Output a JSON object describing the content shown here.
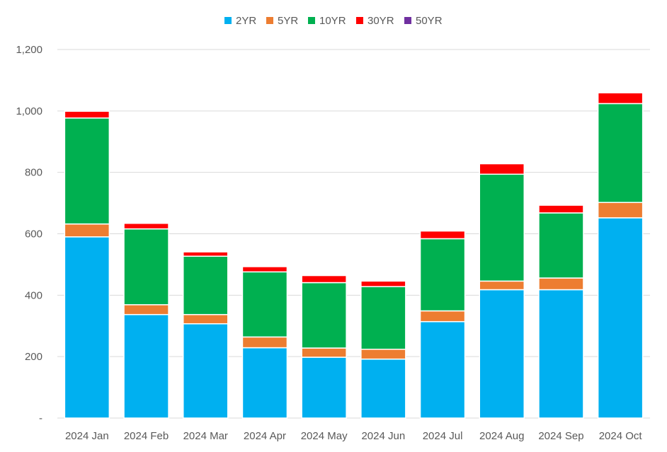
{
  "chart_data": {
    "type": "bar",
    "stacked": true,
    "categories": [
      "2024 Jan",
      "2024 Feb",
      "2024 Mar",
      "2024 Apr",
      "2024 May",
      "2024 Jun",
      "2024 Jul",
      "2024 Aug",
      "2024 Sep",
      "2024 Oct"
    ],
    "series": [
      {
        "name": "2YR",
        "color": "#00B0F0",
        "values": [
          590,
          337,
          307,
          229,
          198,
          192,
          314,
          418,
          418,
          652
        ]
      },
      {
        "name": "5YR",
        "color": "#ED7D31",
        "values": [
          42,
          32,
          30,
          35,
          30,
          32,
          35,
          28,
          38,
          50
        ]
      },
      {
        "name": "10YR",
        "color": "#00B050",
        "values": [
          345,
          247,
          190,
          212,
          213,
          204,
          235,
          348,
          212,
          322
        ]
      },
      {
        "name": "30YR",
        "color": "#FF0000",
        "values": [
          22,
          18,
          14,
          17,
          23,
          18,
          25,
          34,
          25,
          35
        ]
      },
      {
        "name": "50YR",
        "color": "#7030A0",
        "values": [
          0,
          0,
          0,
          0,
          0,
          0,
          0,
          0,
          0,
          0
        ]
      }
    ],
    "title": "",
    "xlabel": "",
    "ylabel": "",
    "ylim": [
      0,
      1200
    ],
    "yticks": [
      {
        "value": 0,
        "label": "-"
      },
      {
        "value": 200,
        "label": "200"
      },
      {
        "value": 400,
        "label": "400"
      },
      {
        "value": 600,
        "label": "600"
      },
      {
        "value": 800,
        "label": "800"
      },
      {
        "value": 1000,
        "label": "1,000"
      },
      {
        "value": 1200,
        "label": "1,200"
      }
    ],
    "grid": true,
    "legend_position": "top-center"
  }
}
